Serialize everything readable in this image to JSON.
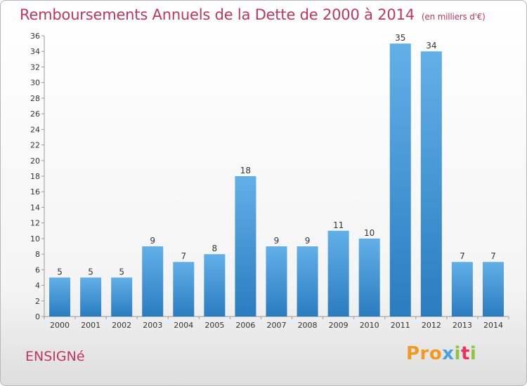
{
  "title": "Remboursements Annuels de la Dette de 2000 à 2014",
  "unit": "(en milliers d'€)",
  "commune": "ENSIGNé",
  "logo": {
    "p1": "Pro",
    "p2": "x",
    "p3": "i",
    "p4": "t",
    "p5": "i"
  },
  "colors": {
    "bar_top": "#62b0e8",
    "bar_bottom": "#2a7cc0",
    "title": "#c0365d"
  },
  "chart_data": {
    "type": "bar",
    "title": "Remboursements Annuels de la Dette de 2000 à 2014",
    "xlabel": "",
    "ylabel": "",
    "categories": [
      "2000",
      "2001",
      "2002",
      "2003",
      "2004",
      "2005",
      "2006",
      "2007",
      "2008",
      "2009",
      "2010",
      "2011",
      "2012",
      "2013",
      "2014"
    ],
    "values": [
      5,
      5,
      5,
      9,
      7,
      8,
      18,
      9,
      9,
      11,
      10,
      35,
      34,
      7,
      7
    ],
    "ylim": [
      0,
      36
    ],
    "yticks": [
      0,
      2,
      4,
      6,
      8,
      10,
      12,
      14,
      16,
      18,
      20,
      22,
      24,
      26,
      28,
      30,
      32,
      34,
      36
    ],
    "grid": false
  }
}
